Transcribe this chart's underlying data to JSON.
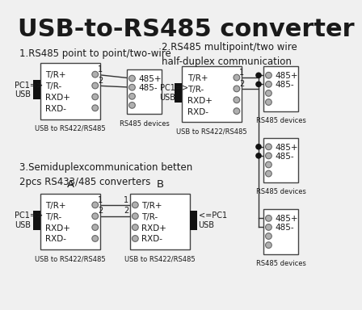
{
  "title": "USB-to-RS485 converter",
  "bg_color": "#f0f0f0",
  "text_color": "#1a1a1a",
  "box_color": "#ffffff",
  "box_edge": "#444444",
  "wire_color": "#333333",
  "dot_color": "#111111",
  "circle_fill": "#b0b0b0",
  "circle_edge": "#666666",
  "usb_color": "#111111",
  "section1_title": "1.RS485 point to point/two-wire",
  "section2_title": "2.RS485 multipoint/two wire\nhalf-duplex communication",
  "section3_title": "3.Semiduplexcommunication betten\n2pcs RS433/485 converters",
  "conv_labels": [
    "T/R+",
    "T/R-",
    "RXD+",
    "RXD-"
  ],
  "dev_labels": [
    "485+",
    "485-",
    "",
    ""
  ]
}
